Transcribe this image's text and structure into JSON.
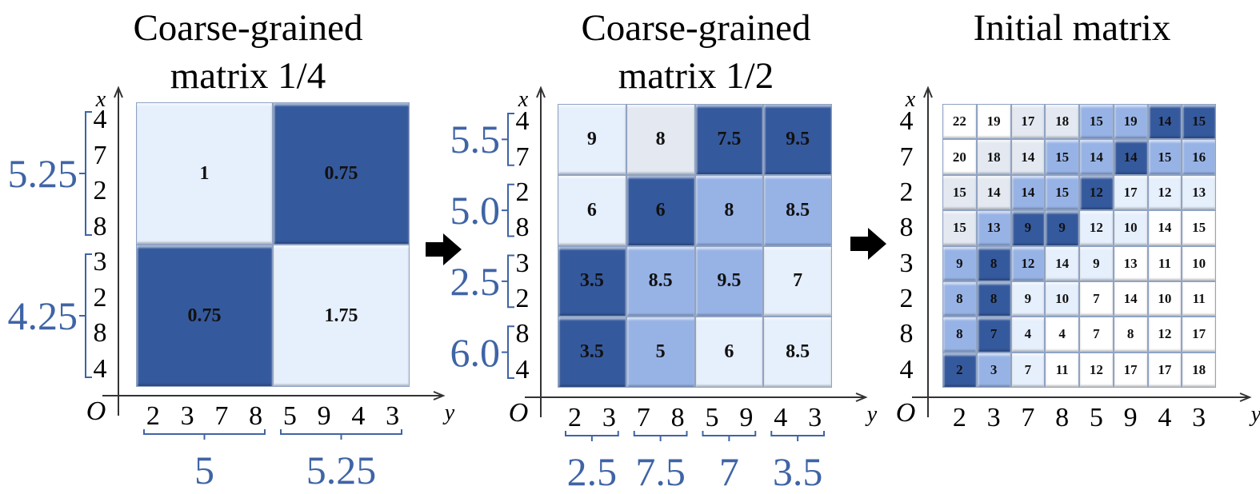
{
  "colors": {
    "level0": "#ffffff",
    "level1": "#e3e8f1",
    "level2": "#e6effc",
    "level3": "#97b3e6",
    "level4": "#35599d",
    "accent": "#3f64a6"
  },
  "axis_labels": {
    "x": "x",
    "y": "y",
    "origin": "O"
  },
  "arrows": [
    "right-arrow",
    "right-arrow"
  ],
  "panels": [
    {
      "title_lines": [
        "Coarse-grained",
        "matrix 1/4"
      ],
      "row_labels": [
        "4",
        "7",
        "2",
        "8",
        "3",
        "2",
        "8",
        "4"
      ],
      "col_labels": [
        "2",
        "3",
        "7",
        "8",
        "5",
        "9",
        "4",
        "3"
      ],
      "row_groups": [
        "5.25",
        "4.25"
      ],
      "col_groups": [
        "5",
        "5.25"
      ],
      "values": [
        [
          "1",
          "0.75"
        ],
        [
          "0.75",
          "1.75"
        ]
      ],
      "shades": [
        [
          2,
          4
        ],
        [
          4,
          2
        ]
      ]
    },
    {
      "title_lines": [
        "Coarse-grained",
        "matrix 1/2"
      ],
      "row_labels": [
        "4",
        "7",
        "2",
        "8",
        "3",
        "2",
        "8",
        "4"
      ],
      "col_labels": [
        "2",
        "3",
        "7",
        "8",
        "5",
        "9",
        "4",
        "3"
      ],
      "row_groups": [
        "5.5",
        "5.0",
        "2.5",
        "6.0"
      ],
      "col_groups": [
        "2.5",
        "7.5",
        "7",
        "3.5"
      ],
      "values": [
        [
          "9",
          "8",
          "7.5",
          "9.5"
        ],
        [
          "6",
          "6",
          "8",
          "8.5"
        ],
        [
          "3.5",
          "8.5",
          "9.5",
          "7"
        ],
        [
          "3.5",
          "5",
          "6",
          "8.5"
        ]
      ],
      "shades": [
        [
          2,
          1,
          4,
          4
        ],
        [
          2,
          4,
          3,
          3
        ],
        [
          4,
          3,
          3,
          2
        ],
        [
          4,
          3,
          2,
          2
        ]
      ]
    },
    {
      "title_lines": [
        "Initial matrix"
      ],
      "row_labels": [
        "4",
        "7",
        "2",
        "8",
        "3",
        "2",
        "8",
        "4"
      ],
      "col_labels": [
        "2",
        "3",
        "7",
        "8",
        "5",
        "9",
        "4",
        "3"
      ],
      "row_groups": [],
      "col_groups": [],
      "values": [
        [
          "22",
          "19",
          "17",
          "18",
          "15",
          "19",
          "14",
          "15"
        ],
        [
          "20",
          "18",
          "14",
          "15",
          "14",
          "14",
          "15",
          "16"
        ],
        [
          "15",
          "14",
          "14",
          "15",
          "12",
          "17",
          "12",
          "13"
        ],
        [
          "15",
          "13",
          "9",
          "9",
          "12",
          "10",
          "14",
          "15"
        ],
        [
          "9",
          "8",
          "12",
          "14",
          "9",
          "13",
          "11",
          "10"
        ],
        [
          "8",
          "8",
          "9",
          "10",
          "7",
          "14",
          "10",
          "11"
        ],
        [
          "8",
          "7",
          "4",
          "4",
          "7",
          "8",
          "12",
          "17"
        ],
        [
          "2",
          "3",
          "7",
          "11",
          "12",
          "17",
          "17",
          "18"
        ]
      ],
      "shades": [
        [
          0,
          0,
          1,
          1,
          3,
          3,
          4,
          4
        ],
        [
          0,
          1,
          1,
          3,
          3,
          4,
          3,
          3
        ],
        [
          1,
          1,
          3,
          3,
          4,
          2,
          2,
          2
        ],
        [
          1,
          3,
          4,
          4,
          2,
          2,
          0,
          0
        ],
        [
          3,
          4,
          3,
          2,
          2,
          0,
          0,
          0
        ],
        [
          3,
          4,
          2,
          2,
          0,
          0,
          0,
          0
        ],
        [
          3,
          4,
          2,
          0,
          0,
          0,
          0,
          0
        ],
        [
          4,
          3,
          2,
          0,
          0,
          0,
          0,
          0
        ]
      ]
    }
  ]
}
